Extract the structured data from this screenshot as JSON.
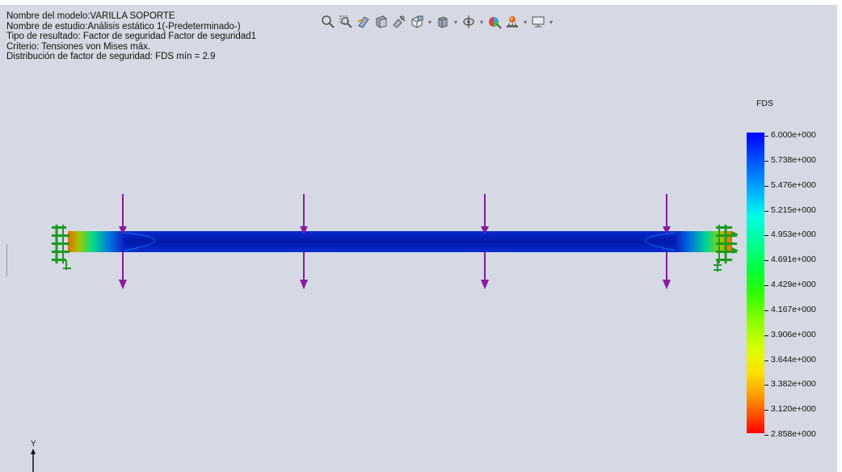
{
  "info": {
    "model_name": "Nombre del modelo:VARILLA SOPORTE",
    "study_name": "Nombre de estudio:Análisis estático 1(-Predeterminado-)",
    "result_type": "Tipo de resultado: Factor de seguridad Factor de seguridad1",
    "criterion": "Criterio: Tensiones von Mises máx.",
    "distribution": "Distribución de factor de seguridad: FDS mín = 2.9"
  },
  "toolbar": {
    "icons": [
      "zoom-to-fit-icon",
      "zoom-to-area-icon",
      "previous-view-icon",
      "section-view-icon",
      "dynamic-annotation-icon",
      "view-orientation-icon",
      "display-style-icon",
      "hide-show-items-icon",
      "edit-appearance-icon",
      "apply-scene-icon",
      "view-settings-icon"
    ]
  },
  "legend": {
    "title": "FDS",
    "labels": [
      "6.000e+000",
      "5.738e+000",
      "5.476e+000",
      "5.215e+000",
      "4.953e+000",
      "4.691e+000",
      "4.429e+000",
      "4.167e+000",
      "3.906e+000",
      "3.644e+000",
      "3.382e+000",
      "3.120e+000",
      "2.858e+000"
    ],
    "max": 6.0,
    "min": 2.858
  },
  "colors": {
    "background": "#d4d9e4",
    "rod": "#0a1eb4",
    "load_arrow": "#8a1aa0",
    "fixture": "#1f9a1f"
  },
  "triad": {
    "y_label": "Y"
  }
}
